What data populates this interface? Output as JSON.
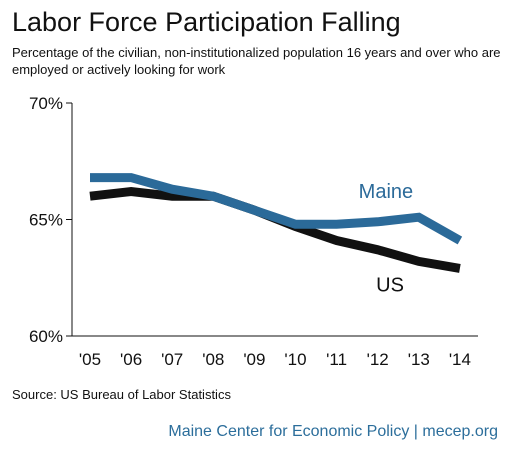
{
  "chart_data": {
    "type": "line",
    "title": "Labor Force Participation Falling",
    "subtitle": "Percentage of the civilian, non-institutionalized population 16 years and over who are employed or actively looking for work",
    "x": [
      "'05",
      "'06",
      "'07",
      "'08",
      "'09",
      "'10",
      "'11",
      "'12",
      "'13",
      "'14"
    ],
    "ylim": [
      60,
      70
    ],
    "yticks": [
      "70%",
      "65%",
      "60%"
    ],
    "ytick_values": [
      70,
      65,
      60
    ],
    "grid": false,
    "series": [
      {
        "name": "US",
        "color": "#111111",
        "values": [
          66.0,
          66.2,
          66.0,
          66.0,
          65.4,
          64.7,
          64.1,
          63.7,
          63.2,
          62.9
        ]
      },
      {
        "name": "Maine",
        "color": "#2b6a99",
        "values": [
          66.8,
          66.8,
          66.3,
          66.0,
          65.4,
          64.8,
          64.8,
          64.9,
          65.1,
          64.1
        ]
      }
    ]
  },
  "source": "Source: US Bureau of Labor Statistics",
  "footer": "Maine Center for Economic Policy | mecep.org"
}
